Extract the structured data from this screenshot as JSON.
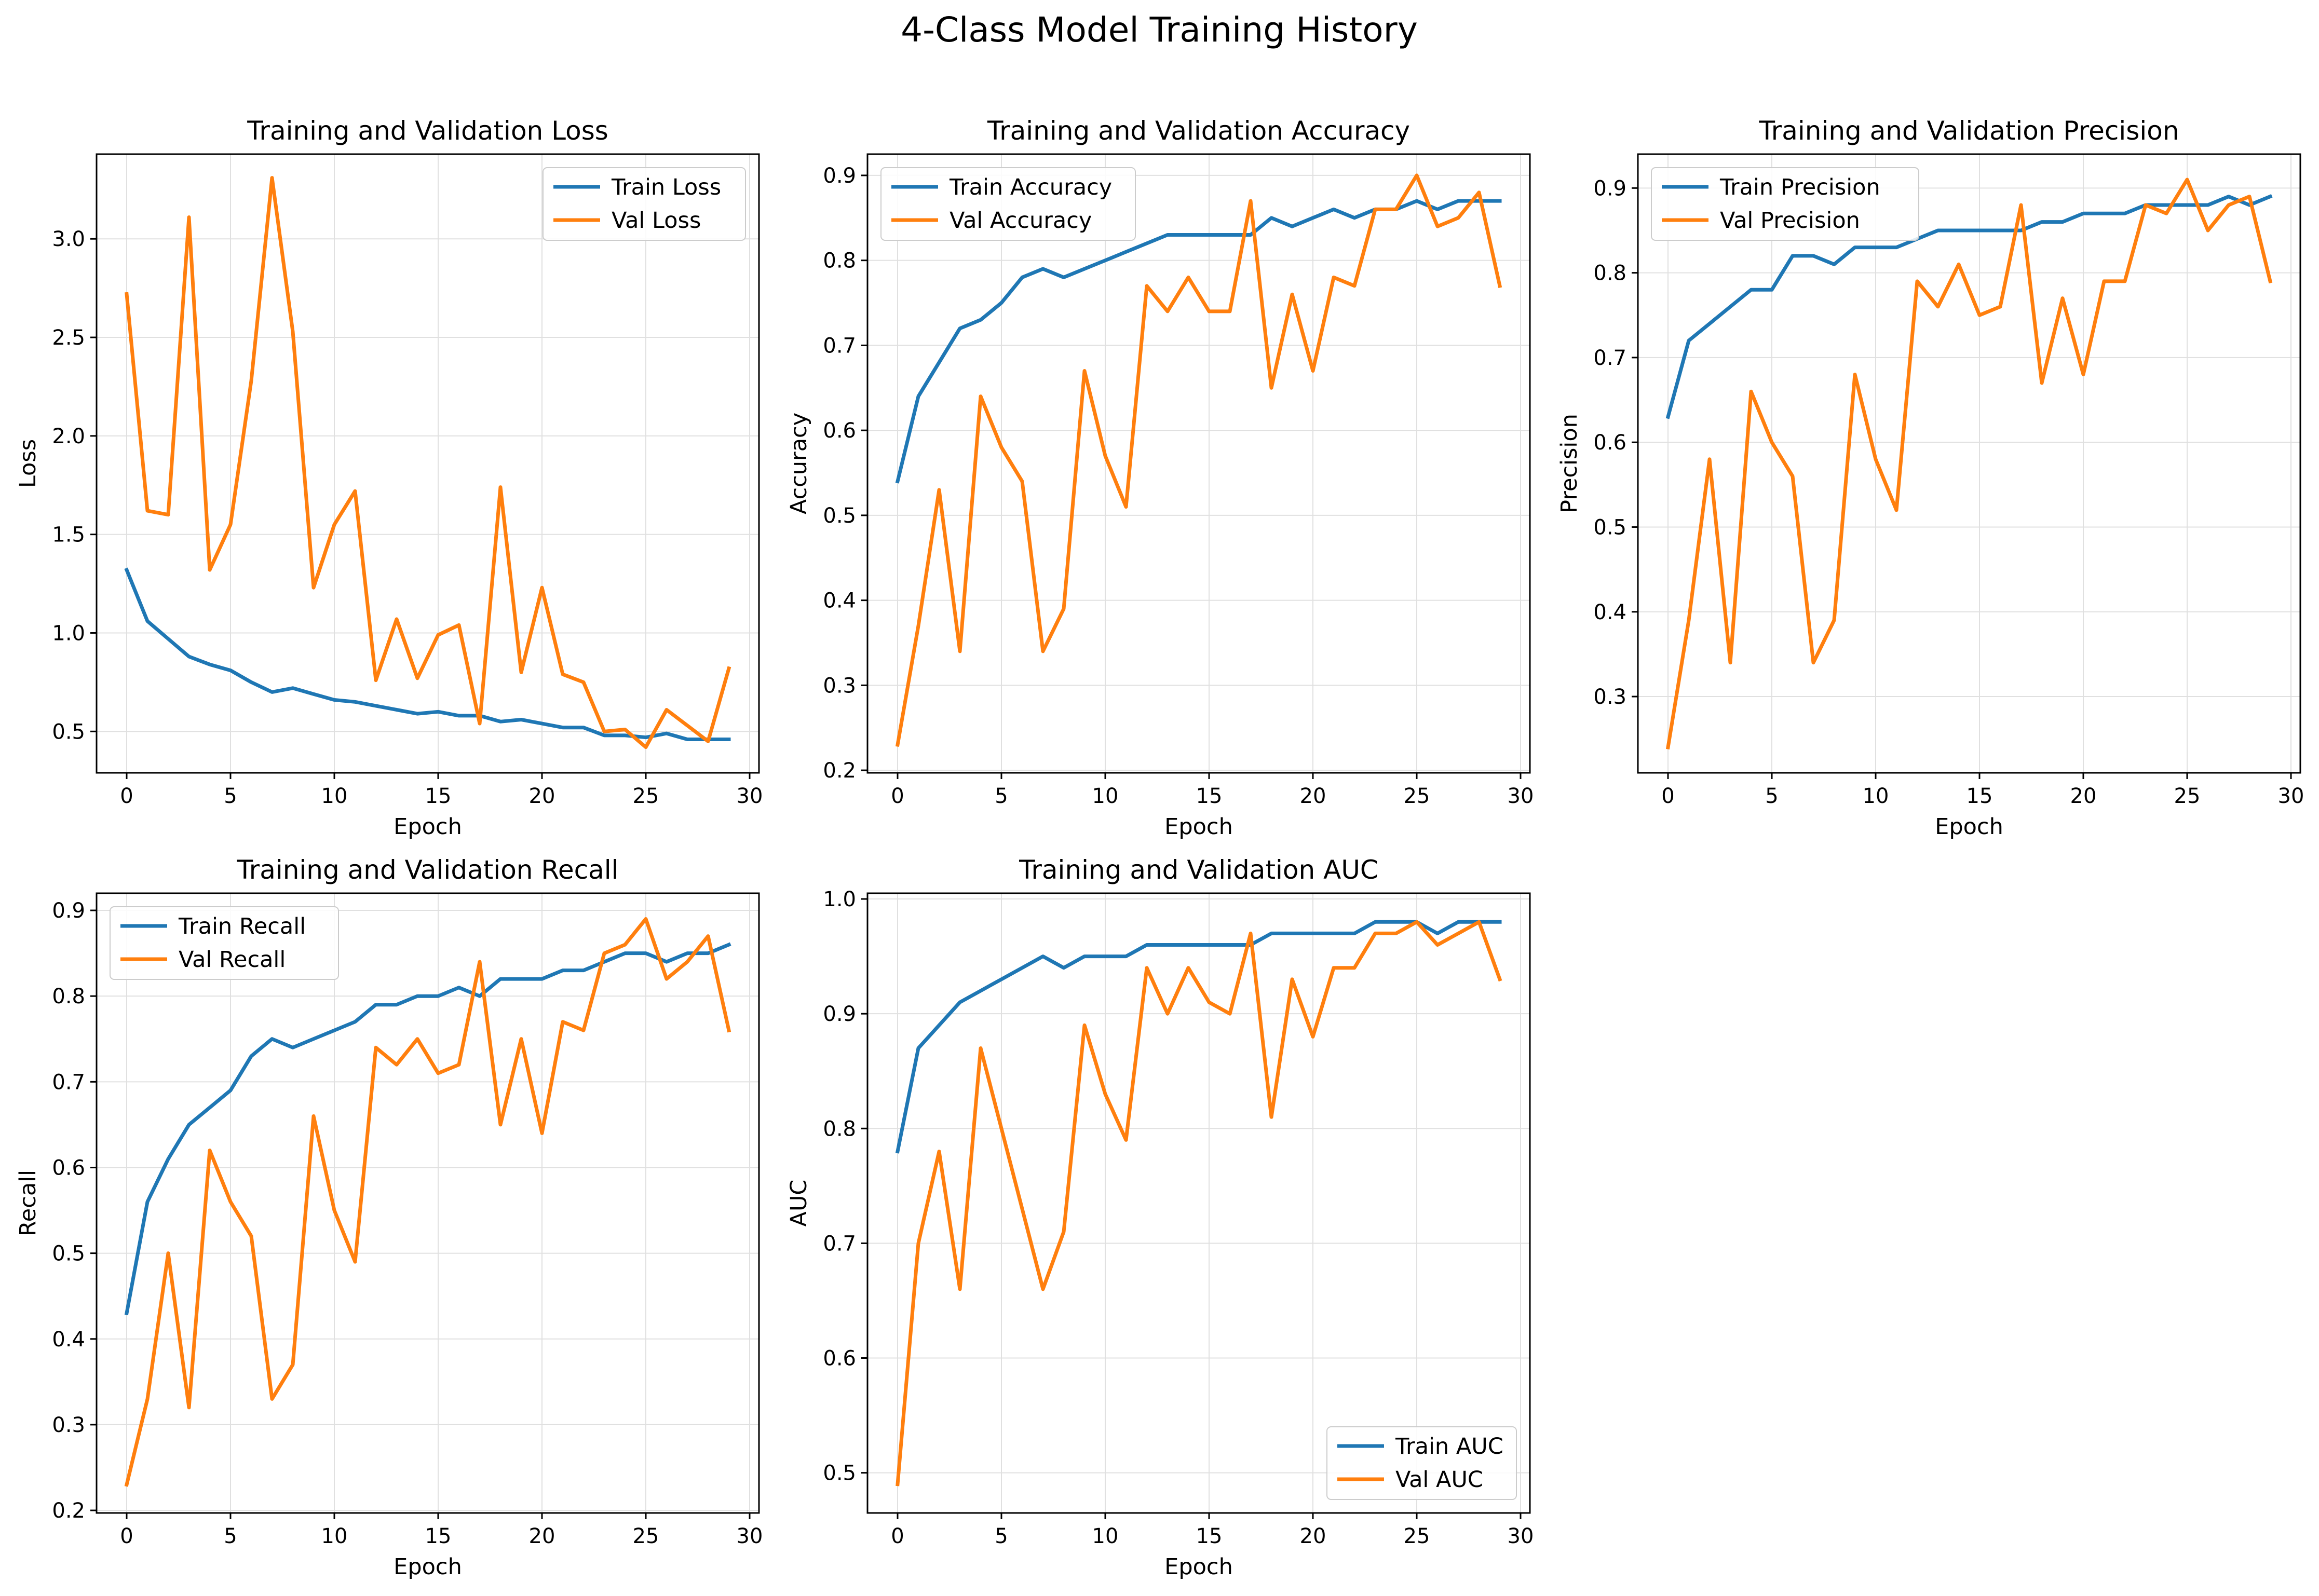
{
  "suptitle": "4-Class Model Training History",
  "colors": {
    "train": "#1f77b4",
    "val": "#ff7f0e",
    "grid": "#e0e0e0"
  },
  "chart_data": [
    {
      "type": "line",
      "title": "Training and Validation Loss",
      "xlabel": "Epoch",
      "ylabel": "Loss",
      "xlim": [
        -1.45,
        30.45
      ],
      "ylim": [
        0.29,
        3.43
      ],
      "xticks": [
        0,
        5,
        10,
        15,
        20,
        25,
        30
      ],
      "yticks": [
        0.5,
        1.0,
        1.5,
        2.0,
        2.5,
        3.0
      ],
      "ytick_labels": [
        "0.5",
        "1.0",
        "1.5",
        "2.0",
        "2.5",
        "3.0"
      ],
      "grid": true,
      "legend": "top-right",
      "x": [
        0,
        1,
        2,
        3,
        4,
        5,
        6,
        7,
        8,
        9,
        10,
        11,
        12,
        13,
        14,
        15,
        16,
        17,
        18,
        19,
        20,
        21,
        22,
        23,
        24,
        25,
        26,
        27,
        28,
        29
      ],
      "series": [
        {
          "name": "Train Loss",
          "color": "#1f77b4",
          "values": [
            1.32,
            1.06,
            0.97,
            0.88,
            0.84,
            0.81,
            0.75,
            0.7,
            0.72,
            0.69,
            0.66,
            0.65,
            0.63,
            0.61,
            0.59,
            0.6,
            0.58,
            0.58,
            0.55,
            0.56,
            0.54,
            0.52,
            0.52,
            0.48,
            0.48,
            0.47,
            0.49,
            0.46,
            0.46,
            0.46
          ]
        },
        {
          "name": "Val Loss",
          "color": "#ff7f0e",
          "values": [
            2.72,
            1.62,
            1.6,
            3.11,
            1.32,
            1.55,
            2.28,
            3.31,
            2.53,
            1.23,
            1.55,
            1.72,
            0.76,
            1.07,
            0.77,
            0.99,
            1.04,
            0.54,
            1.74,
            0.8,
            1.23,
            0.79,
            0.75,
            0.5,
            0.51,
            0.42,
            0.61,
            0.53,
            0.45,
            0.82
          ]
        }
      ]
    },
    {
      "type": "line",
      "title": "Training and Validation Accuracy",
      "xlabel": "Epoch",
      "ylabel": "Accuracy",
      "xlim": [
        -1.45,
        30.45
      ],
      "ylim": [
        0.197,
        0.925
      ],
      "xticks": [
        0,
        5,
        10,
        15,
        20,
        25,
        30
      ],
      "yticks": [
        0.2,
        0.3,
        0.4,
        0.5,
        0.6,
        0.7,
        0.8,
        0.9
      ],
      "ytick_labels": [
        "0.2",
        "0.3",
        "0.4",
        "0.5",
        "0.6",
        "0.7",
        "0.8",
        "0.9"
      ],
      "grid": true,
      "legend": "top-left",
      "x": [
        0,
        1,
        2,
        3,
        4,
        5,
        6,
        7,
        8,
        9,
        10,
        11,
        12,
        13,
        14,
        15,
        16,
        17,
        18,
        19,
        20,
        21,
        22,
        23,
        24,
        25,
        26,
        27,
        28,
        29
      ],
      "series": [
        {
          "name": "Train Accuracy",
          "color": "#1f77b4",
          "values": [
            0.54,
            0.64,
            0.68,
            0.72,
            0.73,
            0.75,
            0.78,
            0.79,
            0.78,
            0.79,
            0.8,
            0.81,
            0.82,
            0.83,
            0.83,
            0.83,
            0.83,
            0.83,
            0.85,
            0.84,
            0.85,
            0.86,
            0.85,
            0.86,
            0.86,
            0.87,
            0.86,
            0.87,
            0.87,
            0.87
          ]
        },
        {
          "name": "Val Accuracy",
          "color": "#ff7f0e",
          "values": [
            0.23,
            0.37,
            0.53,
            0.34,
            0.64,
            0.58,
            0.54,
            0.34,
            0.39,
            0.67,
            0.57,
            0.51,
            0.77,
            0.74,
            0.78,
            0.74,
            0.74,
            0.87,
            0.65,
            0.76,
            0.67,
            0.78,
            0.77,
            0.86,
            0.86,
            0.9,
            0.84,
            0.85,
            0.88,
            0.77
          ]
        }
      ]
    },
    {
      "type": "line",
      "title": "Training and Validation Precision",
      "xlabel": "Epoch",
      "ylabel": "Precision",
      "xlim": [
        -1.45,
        30.45
      ],
      "ylim": [
        0.21,
        0.94
      ],
      "xticks": [
        0,
        5,
        10,
        15,
        20,
        25,
        30
      ],
      "yticks": [
        0.3,
        0.4,
        0.5,
        0.6,
        0.7,
        0.8,
        0.9
      ],
      "ytick_labels": [
        "0.3",
        "0.4",
        "0.5",
        "0.6",
        "0.7",
        "0.8",
        "0.9"
      ],
      "grid": true,
      "legend": "top-left",
      "x": [
        0,
        1,
        2,
        3,
        4,
        5,
        6,
        7,
        8,
        9,
        10,
        11,
        12,
        13,
        14,
        15,
        16,
        17,
        18,
        19,
        20,
        21,
        22,
        23,
        24,
        25,
        26,
        27,
        28,
        29
      ],
      "series": [
        {
          "name": "Train Precision",
          "color": "#1f77b4",
          "values": [
            0.63,
            0.72,
            0.74,
            0.76,
            0.78,
            0.78,
            0.82,
            0.82,
            0.81,
            0.83,
            0.83,
            0.83,
            0.84,
            0.85,
            0.85,
            0.85,
            0.85,
            0.85,
            0.86,
            0.86,
            0.87,
            0.87,
            0.87,
            0.88,
            0.88,
            0.88,
            0.88,
            0.89,
            0.88,
            0.89
          ]
        },
        {
          "name": "Val Precision",
          "color": "#ff7f0e",
          "values": [
            0.24,
            0.39,
            0.58,
            0.34,
            0.66,
            0.6,
            0.56,
            0.34,
            0.39,
            0.68,
            0.58,
            0.52,
            0.79,
            0.76,
            0.81,
            0.75,
            0.76,
            0.88,
            0.67,
            0.77,
            0.68,
            0.79,
            0.79,
            0.88,
            0.87,
            0.91,
            0.85,
            0.88,
            0.89,
            0.79
          ]
        }
      ]
    },
    {
      "type": "line",
      "title": "Training and Validation Recall",
      "xlabel": "Epoch",
      "ylabel": "Recall",
      "xlim": [
        -1.45,
        30.45
      ],
      "ylim": [
        0.197,
        0.92
      ],
      "xticks": [
        0,
        5,
        10,
        15,
        20,
        25,
        30
      ],
      "yticks": [
        0.2,
        0.3,
        0.4,
        0.5,
        0.6,
        0.7,
        0.8,
        0.9
      ],
      "ytick_labels": [
        "0.2",
        "0.3",
        "0.4",
        "0.5",
        "0.6",
        "0.7",
        "0.8",
        "0.9"
      ],
      "grid": true,
      "legend": "top-left",
      "x": [
        0,
        1,
        2,
        3,
        4,
        5,
        6,
        7,
        8,
        9,
        10,
        11,
        12,
        13,
        14,
        15,
        16,
        17,
        18,
        19,
        20,
        21,
        22,
        23,
        24,
        25,
        26,
        27,
        28,
        29
      ],
      "series": [
        {
          "name": "Train Recall",
          "color": "#1f77b4",
          "values": [
            0.43,
            0.56,
            0.61,
            0.65,
            0.67,
            0.69,
            0.73,
            0.75,
            0.74,
            0.75,
            0.76,
            0.77,
            0.79,
            0.79,
            0.8,
            0.8,
            0.81,
            0.8,
            0.82,
            0.82,
            0.82,
            0.83,
            0.83,
            0.84,
            0.85,
            0.85,
            0.84,
            0.85,
            0.85,
            0.86
          ]
        },
        {
          "name": "Val Recall",
          "color": "#ff7f0e",
          "values": [
            0.23,
            0.33,
            0.5,
            0.32,
            0.62,
            0.56,
            0.52,
            0.33,
            0.37,
            0.66,
            0.55,
            0.49,
            0.74,
            0.72,
            0.75,
            0.71,
            0.72,
            0.84,
            0.65,
            0.75,
            0.64,
            0.77,
            0.76,
            0.85,
            0.86,
            0.89,
            0.82,
            0.84,
            0.87,
            0.76
          ]
        }
      ]
    },
    {
      "type": "line",
      "title": "Training and Validation AUC",
      "xlabel": "Epoch",
      "ylabel": "AUC",
      "xlim": [
        -1.45,
        30.45
      ],
      "ylim": [
        0.465,
        1.005
      ],
      "xticks": [
        0,
        5,
        10,
        15,
        20,
        25,
        30
      ],
      "yticks": [
        0.5,
        0.6,
        0.7,
        0.8,
        0.9,
        1.0
      ],
      "ytick_labels": [
        "0.5",
        "0.6",
        "0.7",
        "0.8",
        "0.9",
        "1.0"
      ],
      "grid": true,
      "legend": "bottom-right",
      "x": [
        0,
        1,
        2,
        3,
        4,
        5,
        6,
        7,
        8,
        9,
        10,
        11,
        12,
        13,
        14,
        15,
        16,
        17,
        18,
        19,
        20,
        21,
        22,
        23,
        24,
        25,
        26,
        27,
        28,
        29
      ],
      "series": [
        {
          "name": "Train AUC",
          "color": "#1f77b4",
          "values": [
            0.78,
            0.87,
            0.89,
            0.91,
            0.92,
            0.93,
            0.94,
            0.95,
            0.94,
            0.95,
            0.95,
            0.95,
            0.96,
            0.96,
            0.96,
            0.96,
            0.96,
            0.96,
            0.97,
            0.97,
            0.97,
            0.97,
            0.97,
            0.98,
            0.98,
            0.98,
            0.97,
            0.98,
            0.98,
            0.98
          ]
        },
        {
          "name": "Val AUC",
          "color": "#ff7f0e",
          "values": [
            0.49,
            0.7,
            0.78,
            0.66,
            0.87,
            0.8,
            0.73,
            0.66,
            0.71,
            0.89,
            0.83,
            0.79,
            0.94,
            0.9,
            0.94,
            0.91,
            0.9,
            0.97,
            0.81,
            0.93,
            0.88,
            0.94,
            0.94,
            0.97,
            0.97,
            0.98,
            0.96,
            0.97,
            0.98,
            0.93
          ]
        }
      ]
    }
  ]
}
